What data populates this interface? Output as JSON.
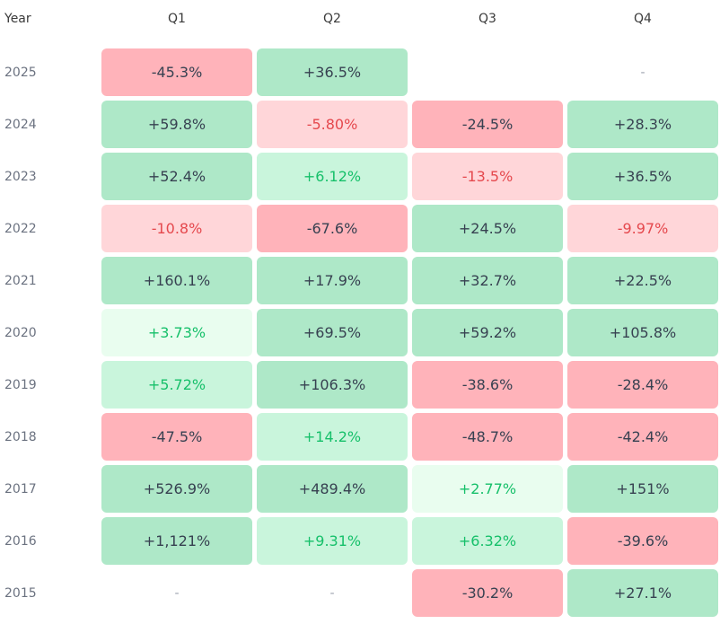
{
  "chart_data": {
    "type": "heatmap",
    "corner_label": "Year",
    "columns": [
      "Q1",
      "Q2",
      "Q3",
      "Q4"
    ],
    "rows": [
      {
        "year": "2025",
        "cells": [
          {
            "text": "-45.3%",
            "value": -45.3,
            "tone": "strong-neg"
          },
          {
            "text": "+36.5%",
            "value": 36.5,
            "tone": "strong-pos"
          },
          {
            "text": "",
            "value": null,
            "tone": "blank"
          },
          {
            "text": "-",
            "value": null,
            "tone": "empty"
          }
        ]
      },
      {
        "year": "2024",
        "cells": [
          {
            "text": "+59.8%",
            "value": 59.8,
            "tone": "strong-pos"
          },
          {
            "text": "-5.80%",
            "value": -5.8,
            "tone": "light-neg"
          },
          {
            "text": "-24.5%",
            "value": -24.5,
            "tone": "strong-neg"
          },
          {
            "text": "+28.3%",
            "value": 28.3,
            "tone": "strong-pos"
          }
        ]
      },
      {
        "year": "2023",
        "cells": [
          {
            "text": "+52.4%",
            "value": 52.4,
            "tone": "strong-pos"
          },
          {
            "text": "+6.12%",
            "value": 6.12,
            "tone": "light-pos"
          },
          {
            "text": "-13.5%",
            "value": -13.5,
            "tone": "light-neg"
          },
          {
            "text": "+36.5%",
            "value": 36.5,
            "tone": "strong-pos"
          }
        ]
      },
      {
        "year": "2022",
        "cells": [
          {
            "text": "-10.8%",
            "value": -10.8,
            "tone": "light-neg"
          },
          {
            "text": "-67.6%",
            "value": -67.6,
            "tone": "strong-neg"
          },
          {
            "text": "+24.5%",
            "value": 24.5,
            "tone": "strong-pos"
          },
          {
            "text": "-9.97%",
            "value": -9.97,
            "tone": "light-neg"
          }
        ]
      },
      {
        "year": "2021",
        "cells": [
          {
            "text": "+160.1%",
            "value": 160.1,
            "tone": "strong-pos"
          },
          {
            "text": "+17.9%",
            "value": 17.9,
            "tone": "strong-pos"
          },
          {
            "text": "+32.7%",
            "value": 32.7,
            "tone": "strong-pos"
          },
          {
            "text": "+22.5%",
            "value": 22.5,
            "tone": "strong-pos"
          }
        ]
      },
      {
        "year": "2020",
        "cells": [
          {
            "text": "+3.73%",
            "value": 3.73,
            "tone": "faint-pos"
          },
          {
            "text": "+69.5%",
            "value": 69.5,
            "tone": "strong-pos"
          },
          {
            "text": "+59.2%",
            "value": 59.2,
            "tone": "strong-pos"
          },
          {
            "text": "+105.8%",
            "value": 105.8,
            "tone": "strong-pos"
          }
        ]
      },
      {
        "year": "2019",
        "cells": [
          {
            "text": "+5.72%",
            "value": 5.72,
            "tone": "light-pos"
          },
          {
            "text": "+106.3%",
            "value": 106.3,
            "tone": "strong-pos"
          },
          {
            "text": "-38.6%",
            "value": -38.6,
            "tone": "strong-neg"
          },
          {
            "text": "-28.4%",
            "value": -28.4,
            "tone": "strong-neg"
          }
        ]
      },
      {
        "year": "2018",
        "cells": [
          {
            "text": "-47.5%",
            "value": -47.5,
            "tone": "strong-neg"
          },
          {
            "text": "+14.2%",
            "value": 14.2,
            "tone": "light-pos"
          },
          {
            "text": "-48.7%",
            "value": -48.7,
            "tone": "strong-neg"
          },
          {
            "text": "-42.4%",
            "value": -42.4,
            "tone": "strong-neg"
          }
        ]
      },
      {
        "year": "2017",
        "cells": [
          {
            "text": "+526.9%",
            "value": 526.9,
            "tone": "strong-pos"
          },
          {
            "text": "+489.4%",
            "value": 489.4,
            "tone": "strong-pos"
          },
          {
            "text": "+2.77%",
            "value": 2.77,
            "tone": "faint-pos"
          },
          {
            "text": "+151%",
            "value": 151,
            "tone": "strong-pos"
          }
        ]
      },
      {
        "year": "2016",
        "cells": [
          {
            "text": "+1,121%",
            "value": 1121,
            "tone": "strong-pos"
          },
          {
            "text": "+9.31%",
            "value": 9.31,
            "tone": "light-pos"
          },
          {
            "text": "+6.32%",
            "value": 6.32,
            "tone": "light-pos"
          },
          {
            "text": "-39.6%",
            "value": -39.6,
            "tone": "strong-neg"
          }
        ]
      },
      {
        "year": "2015",
        "cells": [
          {
            "text": "-",
            "value": null,
            "tone": "empty"
          },
          {
            "text": "-",
            "value": null,
            "tone": "empty"
          },
          {
            "text": "-30.2%",
            "value": -30.2,
            "tone": "strong-neg"
          },
          {
            "text": "+27.1%",
            "value": 27.1,
            "tone": "strong-pos"
          }
        ]
      }
    ]
  },
  "colors": {
    "strong_negative": "#ffb3ba",
    "light_negative": "#ffd6d9",
    "strong_positive": "#aee8c8",
    "light_positive": "#c9f5dc",
    "faint_positive": "#e9fdef",
    "positive_text": "#16c06a",
    "negative_text": "#e5484d"
  }
}
